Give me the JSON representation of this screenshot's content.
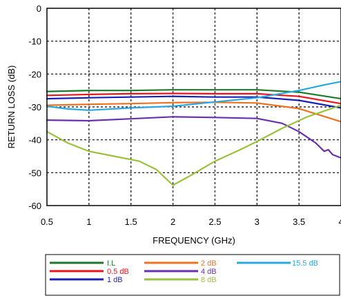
{
  "chart_data": {
    "type": "line",
    "title": "",
    "xlabel": "FREQUENCY (GHz)",
    "ylabel": "RETURN LOSS (dB)",
    "xlim": [
      0.5,
      4
    ],
    "ylim": [
      -60,
      0
    ],
    "x_ticks": [
      "0.5",
      "1",
      "1.5",
      "2",
      "2.5",
      "3",
      "3.5",
      "4"
    ],
    "y_ticks": [
      "0",
      "-10",
      "-20",
      "-30",
      "-40",
      "-50",
      "-60"
    ],
    "grid": true,
    "legend_position": "bottom",
    "series": [
      {
        "name": "I.L",
        "color": "#1a7a2a",
        "points": [
          [
            0.5,
            -25.3
          ],
          [
            1,
            -25.0
          ],
          [
            1.5,
            -25.0
          ],
          [
            2,
            -24.8
          ],
          [
            2.5,
            -24.8
          ],
          [
            3,
            -24.8
          ],
          [
            3.5,
            -25.5
          ],
          [
            4,
            -27.5
          ]
        ]
      },
      {
        "name": "0.5 dB",
        "color": "#e8141c",
        "points": [
          [
            0.5,
            -26.5
          ],
          [
            1,
            -26.2
          ],
          [
            1.5,
            -26.0
          ],
          [
            2,
            -25.9
          ],
          [
            2.5,
            -26.0
          ],
          [
            3,
            -26.0
          ],
          [
            3.5,
            -26.8
          ],
          [
            4,
            -29.0
          ]
        ]
      },
      {
        "name": "1 dB",
        "color": "#1a1fb5",
        "points": [
          [
            0.5,
            -27.5
          ],
          [
            1,
            -27.2
          ],
          [
            1.5,
            -27.0
          ],
          [
            2,
            -26.8
          ],
          [
            2.5,
            -27.0
          ],
          [
            3,
            -27.0
          ],
          [
            3.5,
            -28.0
          ],
          [
            4,
            -30.3
          ]
        ]
      },
      {
        "name": "2 dB",
        "color": "#f07020",
        "points": [
          [
            0.5,
            -29.5
          ],
          [
            1,
            -29.2
          ],
          [
            1.5,
            -29.0
          ],
          [
            2,
            -28.7
          ],
          [
            2.5,
            -28.6
          ],
          [
            3,
            -28.8
          ],
          [
            3.5,
            -30.5
          ],
          [
            4,
            -34.5
          ]
        ]
      },
      {
        "name": "4 dB",
        "color": "#6a2fb0",
        "points": [
          [
            0.5,
            -34.0
          ],
          [
            1,
            -34.2
          ],
          [
            1.5,
            -33.6
          ],
          [
            2,
            -33.0
          ],
          [
            2.5,
            -33.2
          ],
          [
            3,
            -33.5
          ],
          [
            3.3,
            -35.0
          ],
          [
            3.5,
            -37.5
          ],
          [
            3.7,
            -41.0
          ],
          [
            3.8,
            -43.5
          ],
          [
            3.85,
            -43.0
          ],
          [
            3.9,
            -44.5
          ],
          [
            4,
            -45.5
          ]
        ]
      },
      {
        "name": "8 dB",
        "color": "#99c23c",
        "points": [
          [
            0.5,
            -37.5
          ],
          [
            0.75,
            -41.0
          ],
          [
            1,
            -43.5
          ],
          [
            1.3,
            -45.0
          ],
          [
            1.6,
            -46.5
          ],
          [
            1.8,
            -49.0
          ],
          [
            2,
            -53.8
          ],
          [
            2.2,
            -51.0
          ],
          [
            2.5,
            -46.5
          ],
          [
            2.8,
            -43.0
          ],
          [
            3,
            -40.5
          ],
          [
            3.3,
            -36.5
          ],
          [
            3.6,
            -33.0
          ],
          [
            4,
            -29.5
          ]
        ]
      },
      {
        "name": "15.5 dB",
        "color": "#29a8e0",
        "points": [
          [
            0.5,
            -29.8
          ],
          [
            0.75,
            -30.6
          ],
          [
            1,
            -31.0
          ],
          [
            1.5,
            -30.3
          ],
          [
            2,
            -29.8
          ],
          [
            2.5,
            -28.5
          ],
          [
            3,
            -27.2
          ],
          [
            3.5,
            -25.0
          ],
          [
            3.8,
            -23.3
          ],
          [
            4,
            -22.3
          ]
        ]
      }
    ]
  }
}
